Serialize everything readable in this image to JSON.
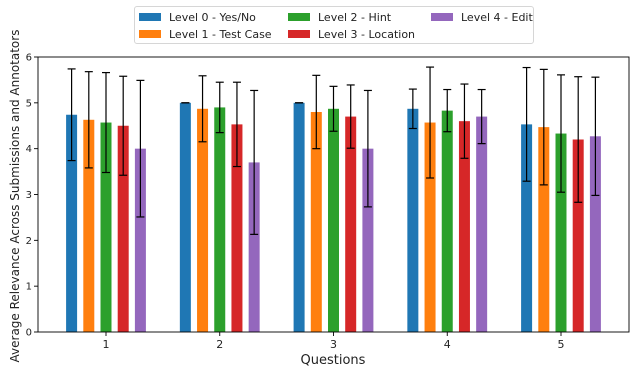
{
  "chart_data": {
    "type": "bar",
    "xlabel": "Questions",
    "ylabel": "Average Relevance Across Submissions and Annotators",
    "categories": [
      "1",
      "2",
      "3",
      "4",
      "5"
    ],
    "ylim": [
      0,
      6
    ],
    "yticks": [
      "0",
      "1",
      "2",
      "3",
      "4",
      "5",
      "6"
    ],
    "legend_position": "top-center",
    "grid": false,
    "series": [
      {
        "name": "Level 0 - Yes/No",
        "color": "#1f77b4",
        "values": [
          4.74,
          5.0,
          5.0,
          4.87,
          4.53
        ],
        "err": [
          1.0,
          0.0,
          0.0,
          0.43,
          1.24
        ]
      },
      {
        "name": "Level 1 - Test Case",
        "color": "#ff7f0e",
        "values": [
          4.63,
          4.87,
          4.8,
          4.57,
          4.47
        ],
        "err": [
          1.05,
          0.72,
          0.8,
          1.21,
          1.26
        ]
      },
      {
        "name": "Level 2 - Hint",
        "color": "#2ca02c",
        "values": [
          4.57,
          4.9,
          4.87,
          4.83,
          4.33
        ],
        "err": [
          1.09,
          0.55,
          0.49,
          0.46,
          1.28
        ]
      },
      {
        "name": "Level 3 - Location",
        "color": "#d62728",
        "values": [
          4.5,
          4.53,
          4.7,
          4.6,
          4.2
        ],
        "err": [
          1.08,
          0.92,
          0.69,
          0.81,
          1.37
        ]
      },
      {
        "name": "Level 4 - Edit",
        "color": "#9467bd",
        "values": [
          4.0,
          3.7,
          4.0,
          4.7,
          4.27
        ],
        "err": [
          1.49,
          1.57,
          1.27,
          0.59,
          1.29
        ]
      }
    ]
  }
}
